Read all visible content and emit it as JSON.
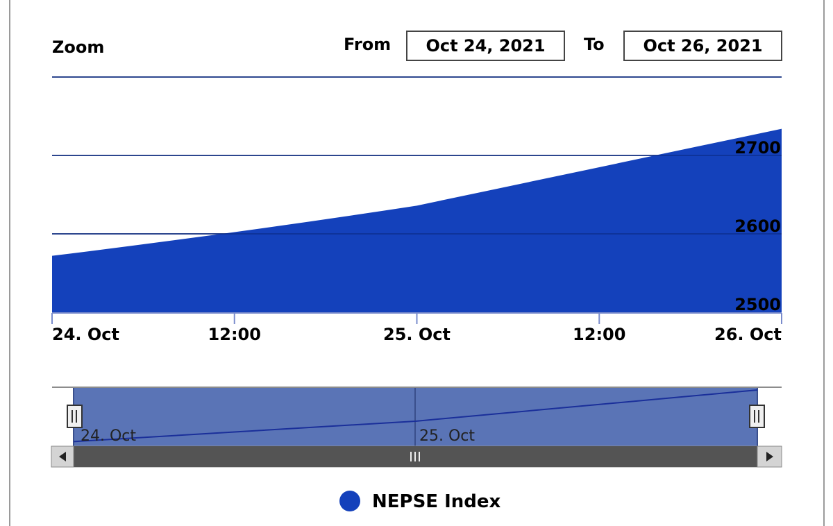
{
  "zoom": {
    "label": "Zoom"
  },
  "range": {
    "from_label": "From",
    "from_value": "Oct 24, 2021",
    "to_label": "To",
    "to_value": "Oct 26, 2021"
  },
  "colors": {
    "area": "#1441bb",
    "navigator_fill": "#5a74b6",
    "scrollbar": "#545454",
    "grid": "#8c8c8c"
  },
  "legend": {
    "label": "NEPSE Index",
    "icon": "circle-marker-icon"
  },
  "navigator": {
    "labels": [
      "24. Oct",
      "25. Oct"
    ],
    "handle_icon": "drag-handle-icon",
    "scroll_left_icon": "arrow-left-icon",
    "scroll_right_icon": "arrow-right-icon",
    "scroll_grip_icon": "grip-icon"
  },
  "chart_data": {
    "type": "area",
    "x_tick_labels": [
      "24. Oct",
      "12:00",
      "25. Oct",
      "12:00",
      "26. Oct"
    ],
    "y_tick_labels": [
      "2500",
      "2600",
      "2700"
    ],
    "y_ticks": [
      2500,
      2600,
      2700
    ],
    "ylim": [
      2500,
      2800
    ],
    "xlim": [
      "2021-10-24",
      "2021-10-26"
    ],
    "grid": true,
    "series": [
      {
        "name": "NEPSE Index",
        "x": [
          "2021-10-24",
          "2021-10-25",
          "2021-10-26"
        ],
        "values": [
          2572,
          2636,
          2734
        ]
      }
    ]
  }
}
